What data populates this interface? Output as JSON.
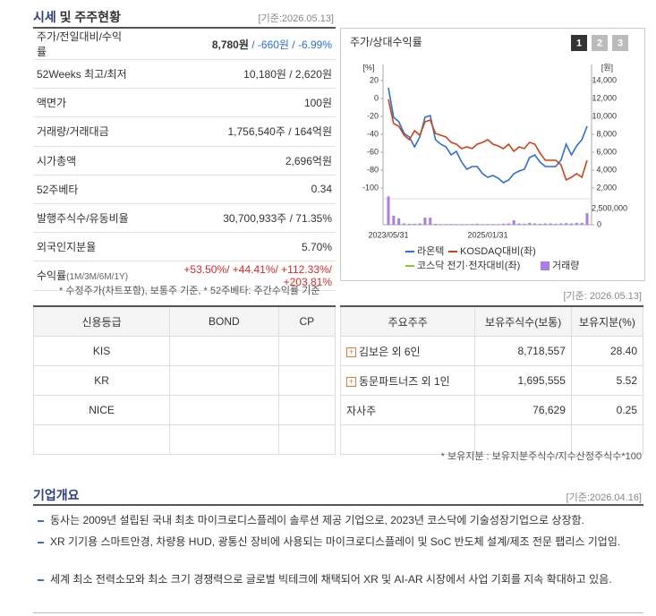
{
  "header": {
    "title_bold": "시세",
    "title_rest": " 및 주주현황",
    "date": "[기준:2026.05.13]"
  },
  "quote_table": {
    "rows": [
      {
        "label": "주가/전일대비/수익률",
        "parts": [
          {
            "text": "8,780원",
            "color": "#333333"
          },
          {
            "text": " / -660원 / -6.99%",
            "color": "#2a6fd6"
          }
        ]
      },
      {
        "label": "52Weeks 최고/최저",
        "parts": [
          {
            "text": "10,180원 / 2,620원",
            "color": "#333333"
          }
        ]
      },
      {
        "label": "액면가",
        "parts": [
          {
            "text": "100원",
            "color": "#333333"
          }
        ]
      },
      {
        "label": "거래량/거래대금",
        "parts": [
          {
            "text": "1,756,540주 / 164억원",
            "color": "#333333"
          }
        ]
      },
      {
        "label": "시가총액",
        "parts": [
          {
            "text": "2,696억원",
            "color": "#333333"
          }
        ]
      },
      {
        "label": "52주베타",
        "parts": [
          {
            "text": "0.34",
            "color": "#333333"
          }
        ]
      },
      {
        "label": "발행주식수/유동비율",
        "parts": [
          {
            "text": "30,700,933주 / 71.35%",
            "color": "#333333"
          }
        ]
      },
      {
        "label": "외국인지분율",
        "parts": [
          {
            "text": "5.70%",
            "color": "#333333"
          }
        ]
      },
      {
        "label": "수익률",
        "sublabel": "(1M/3M/6M/1Y)",
        "parts": [
          {
            "text": "+53.50%/ +44.41%/ +112.33%/ +203.81%",
            "color": "#d62a2a"
          }
        ]
      }
    ]
  },
  "quote_note": "* 수정주가(차트포함), 보통주 기준, * 52주베타: 주간수익률 기준",
  "chart_data": {
    "type": "line",
    "title": "주가/상대수익률",
    "tabs": [
      "1",
      "2",
      "3"
    ],
    "y_unit": "[%]",
    "y2_unit": "[원]",
    "categories": [
      "2023/05/31",
      null,
      null,
      null,
      null,
      null,
      null,
      null,
      null,
      null,
      null,
      null,
      null,
      null,
      null,
      null,
      null,
      null,
      null,
      "2025/01/31",
      null,
      null,
      null,
      null,
      null,
      null,
      null,
      null,
      null,
      null,
      null,
      null,
      null,
      null,
      null,
      null,
      null,
      null,
      null
    ],
    "ylim": [
      -100,
      20
    ],
    "yticks": [
      20,
      0,
      -20,
      -40,
      -60,
      -80,
      -100
    ],
    "y2lim": [
      2000,
      14000
    ],
    "y2ticks": [
      {
        "value": 14000,
        "label": "14,000"
      },
      {
        "value": 12000,
        "label": "12,000"
      },
      {
        "value": 10000,
        "label": "10,000"
      },
      {
        "value": 8000,
        "label": "8,000"
      },
      {
        "value": 6000,
        "label": "6,000"
      },
      {
        "value": 4000,
        "label": "4,000"
      },
      {
        "value": 2000,
        "label": "2,000"
      }
    ],
    "y3lim": [
      0,
      2500000
    ],
    "y3ticks": [
      {
        "value": 2500000,
        "label": "2,500,000"
      },
      0
    ],
    "series": [
      {
        "name": "라온텍",
        "color": "#2f6fd0",
        "axis": "y2",
        "kind": "line",
        "values": [
          13200,
          9900,
          9400,
          8100,
          7700,
          6600,
          7700,
          9900,
          10100,
          7400,
          6900,
          6600,
          5700,
          6100,
          4900,
          4100,
          4400,
          4400,
          3600,
          3200,
          3400,
          3100,
          2600,
          2900,
          3600,
          3900,
          4100,
          5400,
          5700,
          4900,
          4400,
          4400,
          4400,
          5100,
          6900,
          5700,
          6700,
          7400,
          8900
        ]
      },
      {
        "name": "KOSDAQ대비(좌)",
        "color": "#c9441c",
        "axis": "y",
        "kind": "line",
        "values": [
          -1,
          -28,
          -31,
          -41,
          -46,
          -36,
          -41,
          -26,
          -24,
          -39,
          -41,
          -43,
          -49,
          -51,
          -56,
          -54,
          -56,
          -51,
          -49,
          -46,
          -51,
          -53,
          -56,
          -51,
          -59,
          -54,
          -56,
          -49,
          -51,
          -61,
          -69,
          -69,
          -69,
          -74,
          -91,
          -88,
          -84,
          -88,
          -69
        ]
      },
      {
        "name": "코스닥 전기·전자대비(좌)",
        "color": "#8cc63f",
        "axis": "y",
        "kind": "line",
        "values": [
          null,
          null,
          null,
          null,
          null,
          null,
          null,
          null,
          null,
          null,
          null,
          null,
          null,
          null,
          null,
          null,
          null,
          null,
          null,
          null,
          null,
          null,
          null,
          null,
          null,
          null,
          null,
          null,
          null,
          null,
          null,
          null,
          null,
          null,
          null,
          null,
          null,
          null,
          null
        ]
      },
      {
        "name": "거래량",
        "color": "#a97fe0",
        "axis": "y3",
        "kind": "bar",
        "values": [
          4400000,
          1400000,
          1000000,
          200000,
          150000,
          150000,
          200000,
          1100000,
          1100000,
          150000,
          100000,
          100000,
          100000,
          100000,
          100000,
          100000,
          100000,
          150000,
          100000,
          100000,
          100000,
          100000,
          150000,
          200000,
          700000,
          200000,
          150000,
          300000,
          200000,
          150000,
          200000,
          200000,
          150000,
          200000,
          250000,
          200000,
          300000,
          300000,
          1800000
        ]
      }
    ]
  },
  "credit_table": {
    "header": [
      "신용등급",
      "BOND",
      "CP"
    ],
    "rows": [
      [
        "KIS"
      ],
      [
        "KR"
      ],
      [
        "NICE"
      ]
    ]
  },
  "holders_date": "[기준: 2026.05.13]",
  "holders_table": {
    "header": [
      "주요주주",
      "보유주식수(보통)",
      "보유지분(%)"
    ],
    "rows": [
      [
        "김보은 외 6인",
        "8,718,557",
        "28.40"
      ],
      [
        "동문파트너즈 외 1인",
        "1,695,555",
        "5.52"
      ],
      [
        "자사주",
        "76,629",
        "0.25"
      ]
    ]
  },
  "holders_note": "* 보유지분 : 보유지분주식수/지수산정주식수*100",
  "overview": {
    "title": "기업개요",
    "date": "[기준:2026.04.16]",
    "items": [
      "동사는 2009년 설립된 국내 최초 마이크로디스플레이 솔루션 제공 기업으로, 2023년 코스닥에 기술성장기업으로 상장함.",
      "XR 기기용 스마트안경, 차량용 HUD, 광통신 장비에 사용되는 마이크로디스플레이 및 SoC 반도체 설계/제조 전문 팹리스 기업임.",
      "세계 최소 전력소모와 최소 크기 경쟁력으로 글로벌 빅테크에 채택되어 XR 및 AI-AR 시장에서 사업 기회를 지속 확대하고 있음."
    ]
  }
}
